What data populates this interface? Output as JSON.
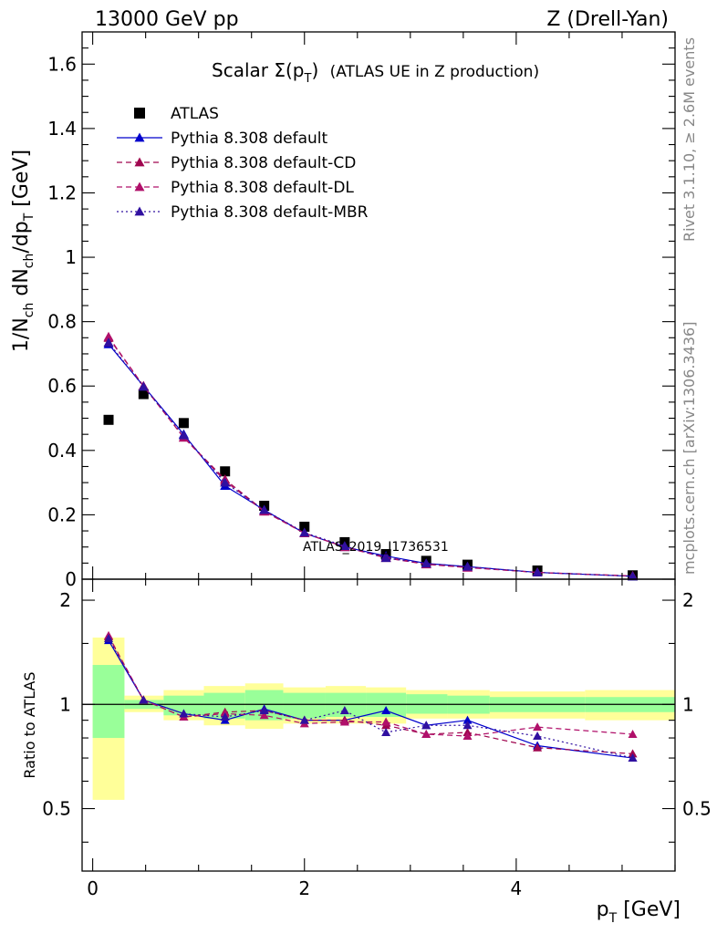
{
  "header": {
    "left": "13000 GeV pp",
    "right": "Z (Drell-Yan)"
  },
  "side_labels": {
    "rivet": "Rivet 3.1.10, ≥ 2.6M events",
    "mcplots": "mcplots.cern.ch [arXiv:1306.3436]"
  },
  "watermark": "ATLAS_2019_I1736531",
  "chart_data": [
    {
      "type": "scatter",
      "title_main": "Scalar Σ(p",
      "title_sub": "T",
      "title_close": ")",
      "title_note": "(ATLAS UE in Z production)",
      "ylabel": "1/N_ch dN_ch/dp_T [GeV]",
      "xlim": [
        -0.1,
        5.5
      ],
      "ylim": [
        0,
        1.7
      ],
      "yticks": [
        0,
        0.2,
        0.4,
        0.6,
        0.8,
        1,
        1.2,
        1.4,
        1.6
      ],
      "ytick_labels": [
        "0",
        "0.2",
        "0.4",
        "0.6",
        "0.8",
        "1",
        "1.2",
        "1.4",
        "1.6"
      ],
      "legend_position": "top-left",
      "x": [
        0.15,
        0.48,
        0.86,
        1.25,
        1.62,
        2.0,
        2.38,
        2.77,
        3.15,
        3.54,
        4.2,
        5.1
      ],
      "series": [
        {
          "name": "ATLAS",
          "color": "#000000",
          "marker": "square",
          "line": "none",
          "values": [
            0.495,
            0.575,
            0.485,
            0.335,
            0.228,
            0.163,
            0.115,
            0.078,
            0.057,
            0.045,
            0.027,
            0.012
          ]
        },
        {
          "name": "Pythia 8.308 default",
          "color": "#0000cc",
          "marker": "triangle",
          "line": "solid",
          "values": [
            0.73,
            0.6,
            0.45,
            0.29,
            0.215,
            0.143,
            0.1,
            0.072,
            0.049,
            0.039,
            0.021,
            0.009
          ]
        },
        {
          "name": "Pythia 8.308 default-CD",
          "color": "#a0064f",
          "marker": "triangle",
          "line": "dashed",
          "values": [
            0.75,
            0.6,
            0.44,
            0.31,
            0.212,
            0.143,
            0.1,
            0.068,
            0.047,
            0.037,
            0.021,
            0.01
          ]
        },
        {
          "name": "Pythia 8.308 default-DL",
          "color": "#b0106a",
          "marker": "triangle",
          "line": "dashed",
          "values": [
            0.753,
            0.6,
            0.44,
            0.305,
            0.21,
            0.143,
            0.1,
            0.066,
            0.046,
            0.036,
            0.021,
            0.01
          ]
        },
        {
          "name": "Pythia 8.308 default-MBR",
          "color": "#3010a0",
          "marker": "triangle",
          "line": "dotted",
          "values": [
            0.735,
            0.598,
            0.447,
            0.3,
            0.215,
            0.145,
            0.103,
            0.066,
            0.049,
            0.039,
            0.021,
            0.009
          ]
        }
      ]
    },
    {
      "type": "line",
      "ylabel": "Ratio to ATLAS",
      "xlabel": "p_T [GeV]",
      "xlim": [
        -0.1,
        5.5
      ],
      "xticks": [
        0,
        2,
        4
      ],
      "xtick_labels": [
        "0",
        "2",
        "4"
      ],
      "ylim": [
        0.33,
        2.3
      ],
      "yticks": [
        0.5,
        1,
        2
      ],
      "ytick_labels": [
        "0.5",
        "1",
        "2"
      ],
      "reference_line": 1,
      "bands": [
        {
          "x0": 0.0,
          "x1": 0.3,
          "inner": [
            0.8,
            1.3
          ],
          "outer": [
            0.53,
            1.56
          ]
        },
        {
          "x0": 0.3,
          "x1": 0.67,
          "inner": [
            0.97,
            1.03
          ],
          "outer": [
            0.95,
            1.06
          ]
        },
        {
          "x0": 0.67,
          "x1": 1.05,
          "inner": [
            0.93,
            1.06
          ],
          "outer": [
            0.9,
            1.1
          ]
        },
        {
          "x0": 1.05,
          "x1": 1.44,
          "inner": [
            0.91,
            1.08
          ],
          "outer": [
            0.87,
            1.13
          ]
        },
        {
          "x0": 1.44,
          "x1": 1.8,
          "inner": [
            0.9,
            1.1
          ],
          "outer": [
            0.85,
            1.15
          ]
        },
        {
          "x0": 1.8,
          "x1": 2.2,
          "inner": [
            0.91,
            1.08
          ],
          "outer": [
            0.88,
            1.12
          ]
        },
        {
          "x0": 2.2,
          "x1": 2.58,
          "inner": [
            0.92,
            1.08
          ],
          "outer": [
            0.88,
            1.13
          ]
        },
        {
          "x0": 2.58,
          "x1": 2.96,
          "inner": [
            0.92,
            1.08
          ],
          "outer": [
            0.88,
            1.12
          ]
        },
        {
          "x0": 2.96,
          "x1": 3.35,
          "inner": [
            0.94,
            1.07
          ],
          "outer": [
            0.91,
            1.1
          ]
        },
        {
          "x0": 3.35,
          "x1": 3.75,
          "inner": [
            0.94,
            1.06
          ],
          "outer": [
            0.91,
            1.1
          ]
        },
        {
          "x0": 3.75,
          "x1": 4.65,
          "inner": [
            0.95,
            1.05
          ],
          "outer": [
            0.91,
            1.09
          ]
        },
        {
          "x0": 4.65,
          "x1": 5.5,
          "inner": [
            0.95,
            1.05
          ],
          "outer": [
            0.9,
            1.1
          ]
        }
      ],
      "x": [
        0.15,
        0.48,
        0.86,
        1.25,
        1.62,
        2.0,
        2.38,
        2.77,
        3.15,
        3.54,
        4.2,
        5.1
      ],
      "series": [
        {
          "name": "Pythia 8.308 default",
          "color": "#0000cc",
          "line": "solid",
          "values": [
            1.53,
            1.03,
            0.94,
            0.9,
            0.97,
            0.9,
            0.9,
            0.96,
            0.87,
            0.9,
            0.76,
            0.7
          ]
        },
        {
          "name": "Pythia 8.308 default-CD",
          "color": "#a0064f",
          "line": "dashed",
          "values": [
            1.57,
            1.03,
            0.92,
            0.95,
            0.96,
            0.9,
            0.9,
            0.87,
            0.82,
            0.83,
            0.75,
            0.72
          ]
        },
        {
          "name": "Pythia 8.308 default-DL",
          "color": "#b0106a",
          "line": "dashed",
          "values": [
            1.58,
            1.03,
            0.92,
            0.94,
            0.93,
            0.88,
            0.89,
            0.89,
            0.82,
            0.81,
            0.86,
            0.82
          ]
        },
        {
          "name": "Pythia 8.308 default-MBR",
          "color": "#3010a0",
          "line": "dotted",
          "values": [
            1.55,
            1.03,
            0.94,
            0.92,
            0.96,
            0.9,
            0.96,
            0.83,
            0.87,
            0.87,
            0.81,
            0.7
          ]
        }
      ]
    }
  ]
}
